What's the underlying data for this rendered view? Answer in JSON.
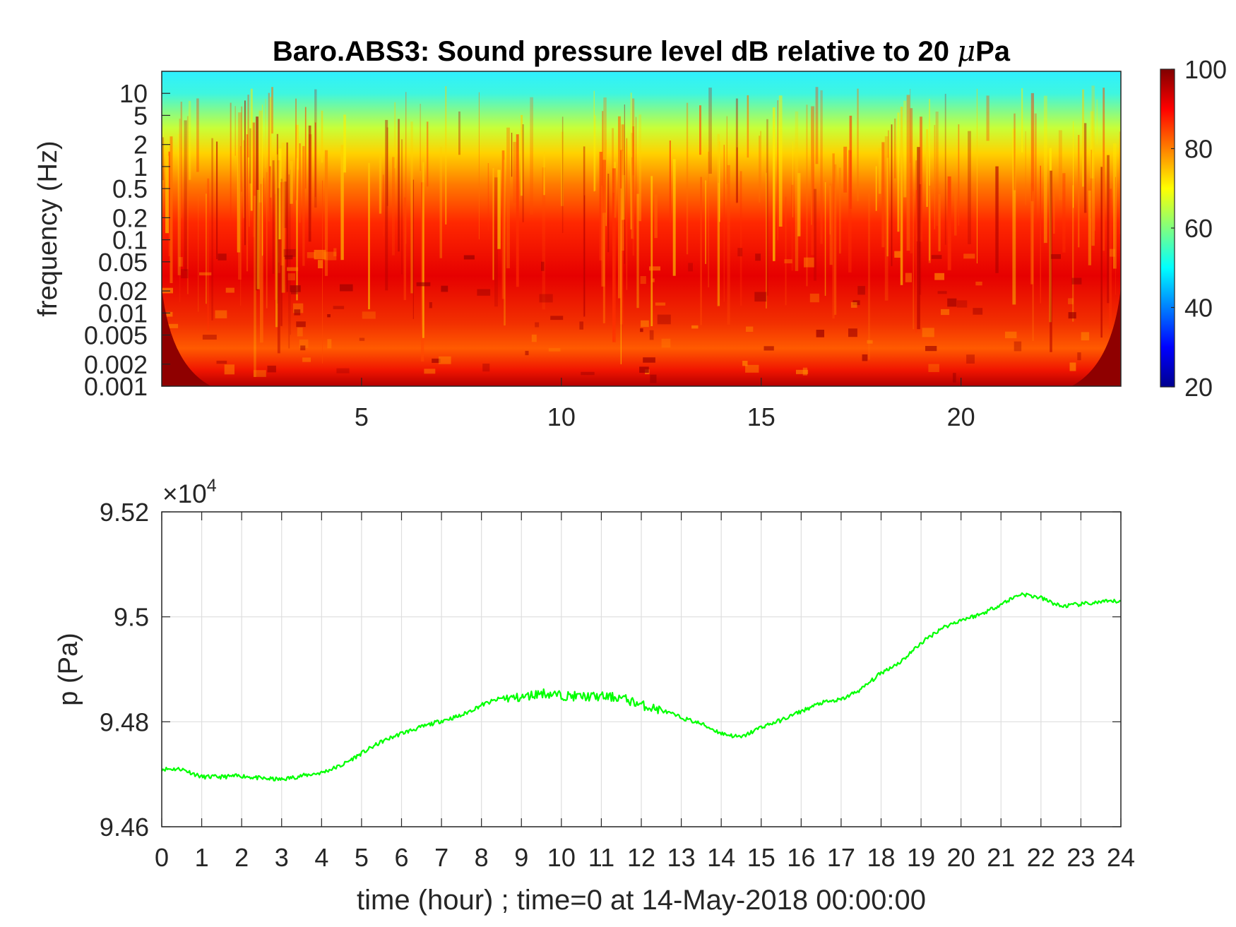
{
  "chart_data": [
    {
      "type": "heatmap",
      "title_prefix": "Baro.ABS3: Sound pressure level dB relative to 20 ",
      "title_mu": "μ",
      "title_suffix": "Pa",
      "xlabel": "",
      "ylabel": "frequency (Hz)",
      "x_ticks": [
        "5",
        "10",
        "15",
        "20"
      ],
      "x_tick_values": [
        5,
        10,
        15,
        20
      ],
      "xlim": [
        0,
        24
      ],
      "y_scale": "log",
      "ylim": [
        0.001,
        20
      ],
      "y_ticks": [
        "0.001",
        "0.002",
        "0.005",
        "0.01",
        "0.02",
        "0.05",
        "0.1",
        "0.2",
        "0.5",
        "1",
        "2",
        "5",
        "10"
      ],
      "y_tick_values": [
        0.001,
        0.002,
        0.005,
        0.01,
        0.02,
        0.05,
        0.1,
        0.2,
        0.5,
        1,
        2,
        5,
        10
      ],
      "colorbar": {
        "colormap": "jet",
        "range": [
          20,
          100
        ],
        "ticks": [
          "20",
          "40",
          "60",
          "80",
          "100"
        ],
        "tick_values": [
          20,
          40,
          60,
          80,
          100
        ]
      }
    },
    {
      "type": "line",
      "xlabel": "time (hour) ; time=0 at 14-May-2018 00:00:00",
      "ylabel": "p (Pa)",
      "exponent_label": "×10",
      "exponent_power": "4",
      "xlim": [
        0,
        24
      ],
      "ylim": [
        94600,
        95200
      ],
      "x_ticks": [
        "0",
        "1",
        "2",
        "3",
        "4",
        "5",
        "6",
        "7",
        "8",
        "9",
        "10",
        "11",
        "12",
        "13",
        "14",
        "15",
        "16",
        "17",
        "18",
        "19",
        "20",
        "21",
        "22",
        "23",
        "24"
      ],
      "y_ticks": [
        "9.46",
        "9.48",
        "9.5",
        "9.52"
      ],
      "y_tick_values": [
        94600,
        94800,
        95000,
        95200
      ],
      "grid": true,
      "line_color": "#00ff00",
      "series": [
        {
          "x": [
            0,
            0.5,
            1,
            1.5,
            2,
            2.5,
            3,
            3.5,
            4,
            4.5,
            5,
            5.5,
            6,
            6.5,
            7,
            7.5,
            8,
            8.5,
            9,
            9.5,
            10,
            10.5,
            11,
            11.5,
            12,
            12.5,
            13,
            13.5,
            14,
            14.5,
            15,
            15.5,
            16,
            16.5,
            17,
            17.5,
            18,
            18.5,
            19,
            19.5,
            20,
            20.5,
            21,
            21.5,
            22,
            22.5,
            23,
            23.5,
            24
          ],
          "y": [
            94710,
            94710,
            94695,
            94695,
            94697,
            94692,
            94690,
            94697,
            94703,
            94717,
            94740,
            94762,
            94778,
            94790,
            94802,
            94812,
            94832,
            94845,
            94846,
            94855,
            94850,
            94848,
            94848,
            94846,
            94832,
            94822,
            94808,
            94796,
            94778,
            94770,
            94790,
            94803,
            94820,
            94836,
            94842,
            94862,
            94893,
            94915,
            94950,
            94978,
            94994,
            95005,
            95024,
            95044,
            95036,
            95020,
            95024,
            95028,
            95030
          ]
        }
      ]
    }
  ]
}
